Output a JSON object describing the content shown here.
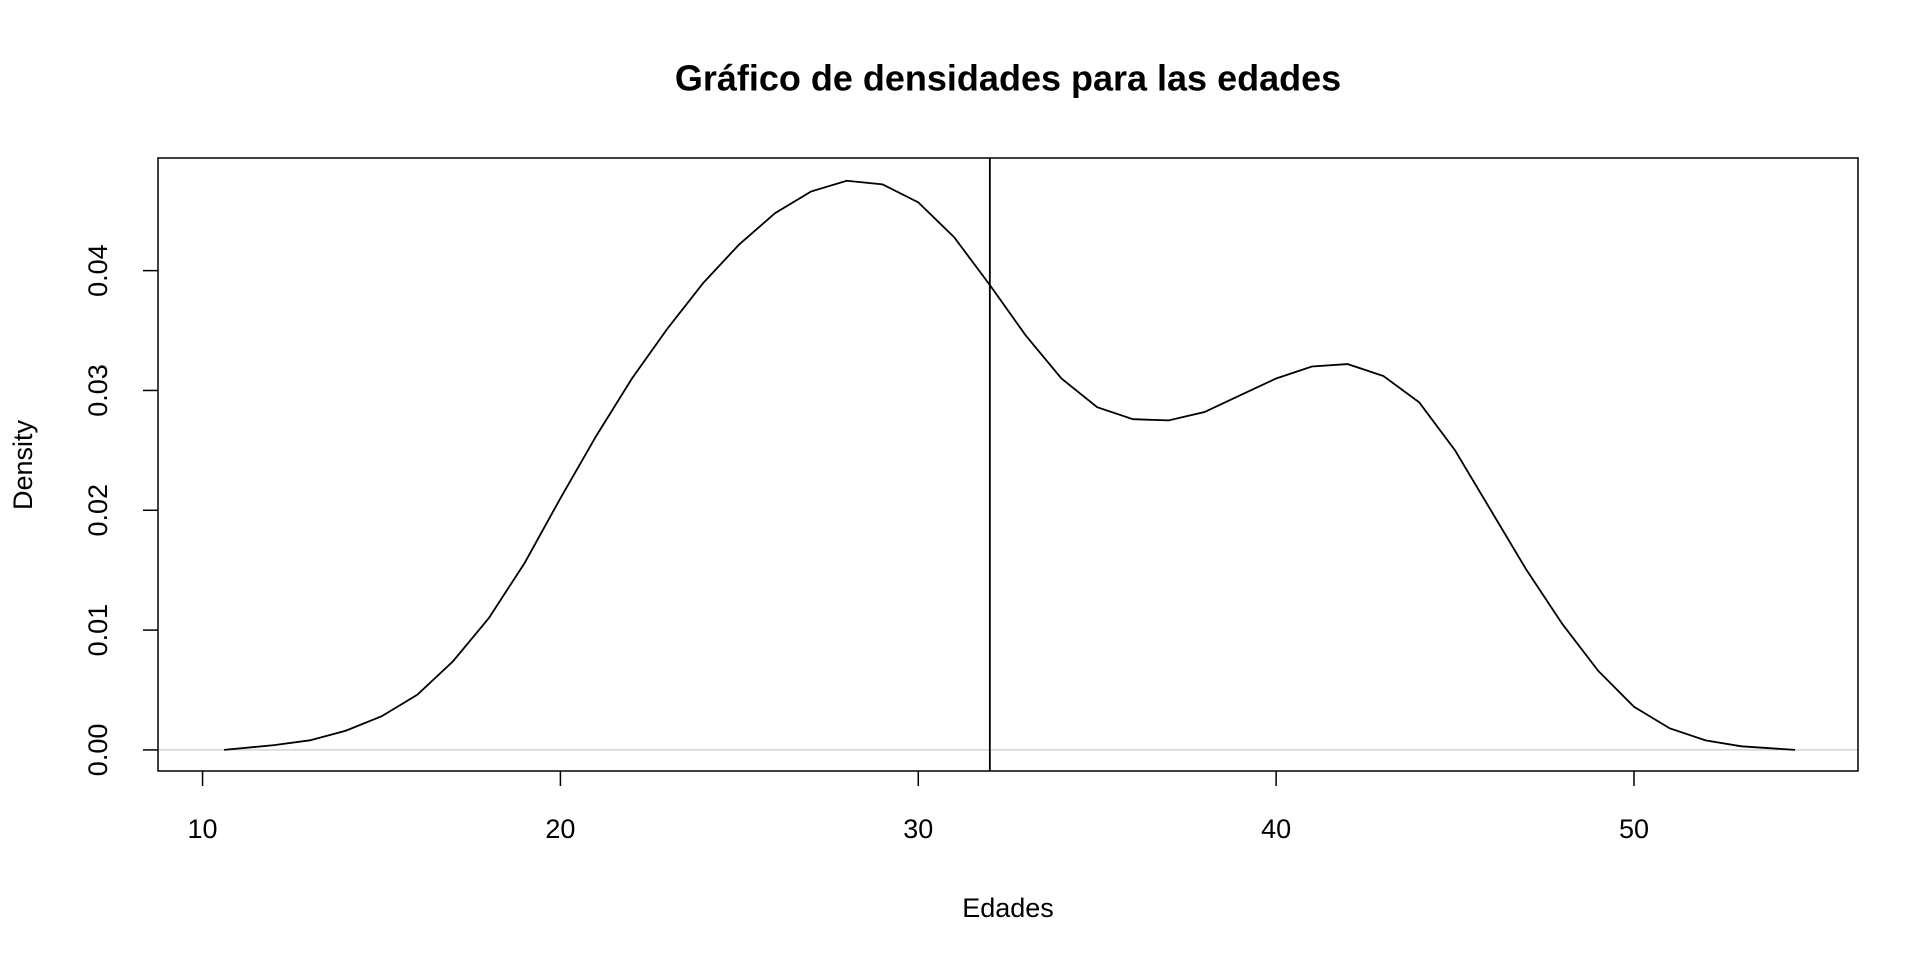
{
  "chart_data": {
    "type": "line",
    "title": "Gráfico de densidades para las edades",
    "xlabel": "Edades",
    "ylabel": "Density",
    "x": [
      10.6,
      12,
      13,
      14,
      15,
      16,
      17,
      18,
      19,
      20,
      21,
      22,
      23,
      24,
      25,
      26,
      27,
      28,
      29,
      30,
      31,
      32,
      33,
      34,
      35,
      36,
      37,
      38,
      39,
      40,
      41,
      42,
      43,
      44,
      45,
      46,
      47,
      48,
      49,
      50,
      51,
      52,
      53,
      54.5
    ],
    "series": [
      {
        "name": "density",
        "color": "#000000",
        "values": [
          0.0,
          0.0004,
          0.0008,
          0.0016,
          0.0028,
          0.0046,
          0.0074,
          0.011,
          0.0156,
          0.021,
          0.0262,
          0.031,
          0.0352,
          0.039,
          0.0422,
          0.0448,
          0.0466,
          0.0475,
          0.0472,
          0.0457,
          0.0428,
          0.0388,
          0.0346,
          0.031,
          0.0286,
          0.0276,
          0.0275,
          0.0282,
          0.0296,
          0.031,
          0.032,
          0.0322,
          0.0312,
          0.029,
          0.025,
          0.02,
          0.015,
          0.0105,
          0.0066,
          0.0036,
          0.0018,
          0.0008,
          0.0003,
          0.0
        ]
      }
    ],
    "vline": 32,
    "zero_line": true,
    "xlim": [
      8.755,
      56.26
    ],
    "ylim": [
      -0.00176,
      0.0494
    ],
    "xticks": [
      10,
      20,
      30,
      40,
      50
    ],
    "yticks": [
      {
        "value": 0,
        "label": "0.00"
      },
      {
        "value": 0.01,
        "label": "0.01"
      },
      {
        "value": 0.02,
        "label": "0.02"
      },
      {
        "value": 0.03,
        "label": "0.03"
      },
      {
        "value": 0.04,
        "label": "0.04"
      }
    ]
  }
}
